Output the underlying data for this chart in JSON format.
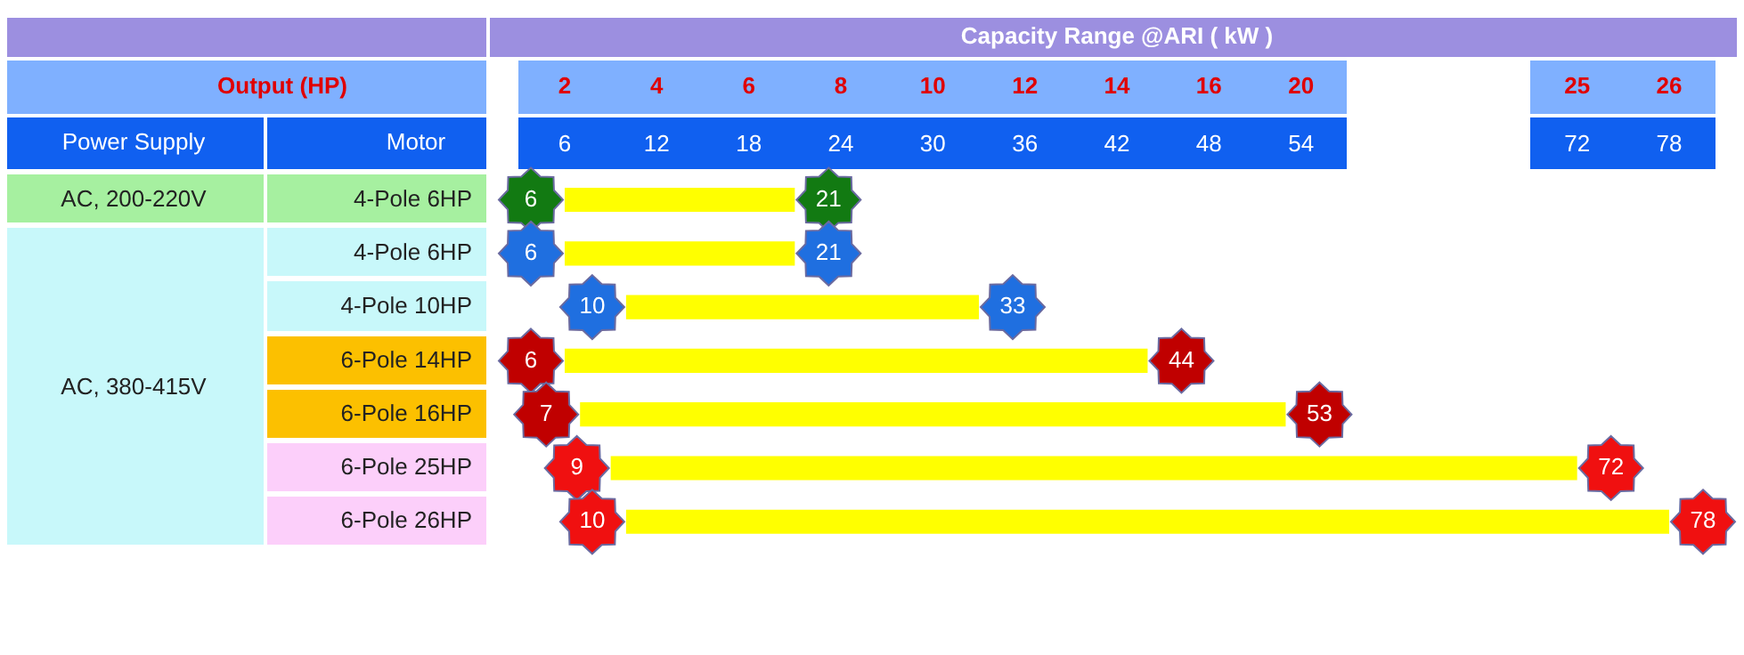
{
  "chart_data": {
    "type": "bar",
    "orientation": "horizontal",
    "xlabel": "Capacity Range @ARI ( kW )",
    "ylabel": "Motor",
    "categories": [
      "4-Pole 6HP",
      "4-Pole 6HP",
      "4-Pole 10HP",
      "6-Pole 14HP",
      "6-Pole 16HP",
      "6-Pole 25HP",
      "6-Pole 26HP"
    ],
    "base": [
      6,
      6,
      10,
      6,
      7,
      9,
      10
    ],
    "values": [
      15,
      15,
      23,
      38,
      46,
      63,
      68
    ],
    "color": "#ffff00",
    "marker": "star",
    "xlim": [
      6,
      78
    ],
    "xticks": [
      6,
      12,
      18,
      24,
      30,
      36,
      42,
      48,
      54,
      72,
      78
    ],
    "grid": false,
    "annotations": [
      "Power Supply",
      "AC, 200-220V",
      "AC, 380-415V",
      "Output (HP)",
      "2",
      "4",
      "6",
      "8",
      "10",
      "12",
      "14",
      "16",
      "20",
      "25",
      "26",
      {
        "text": "6",
        "x": 6,
        "y": "4-Pole 6HP"
      },
      {
        "text": "21",
        "x": 21,
        "y": "4-Pole 6HP"
      },
      {
        "text": "6",
        "x": 6,
        "y": "4-Pole 6HP"
      },
      {
        "text": "21",
        "x": 21,
        "y": "4-Pole 6HP"
      },
      {
        "text": "10",
        "x": 10,
        "y": "4-Pole 10HP"
      },
      {
        "text": "33",
        "x": 33,
        "y": "4-Pole 10HP"
      },
      {
        "text": "6",
        "x": 6,
        "y": "6-Pole 14HP"
      },
      {
        "text": "44",
        "x": 44,
        "y": "6-Pole 14HP"
      },
      {
        "text": "7",
        "x": 7,
        "y": "6-Pole 16HP"
      },
      {
        "text": "53",
        "x": 53,
        "y": "6-Pole 16HP"
      },
      {
        "text": "9",
        "x": 9,
        "y": "6-Pole 25HP"
      },
      {
        "text": "72",
        "x": 72,
        "y": "6-Pole 25HP"
      },
      {
        "text": "10",
        "x": 10,
        "y": "6-Pole 26HP"
      },
      {
        "text": "78",
        "x": 78,
        "y": "6-Pole 26HP"
      }
    ]
  }
}
